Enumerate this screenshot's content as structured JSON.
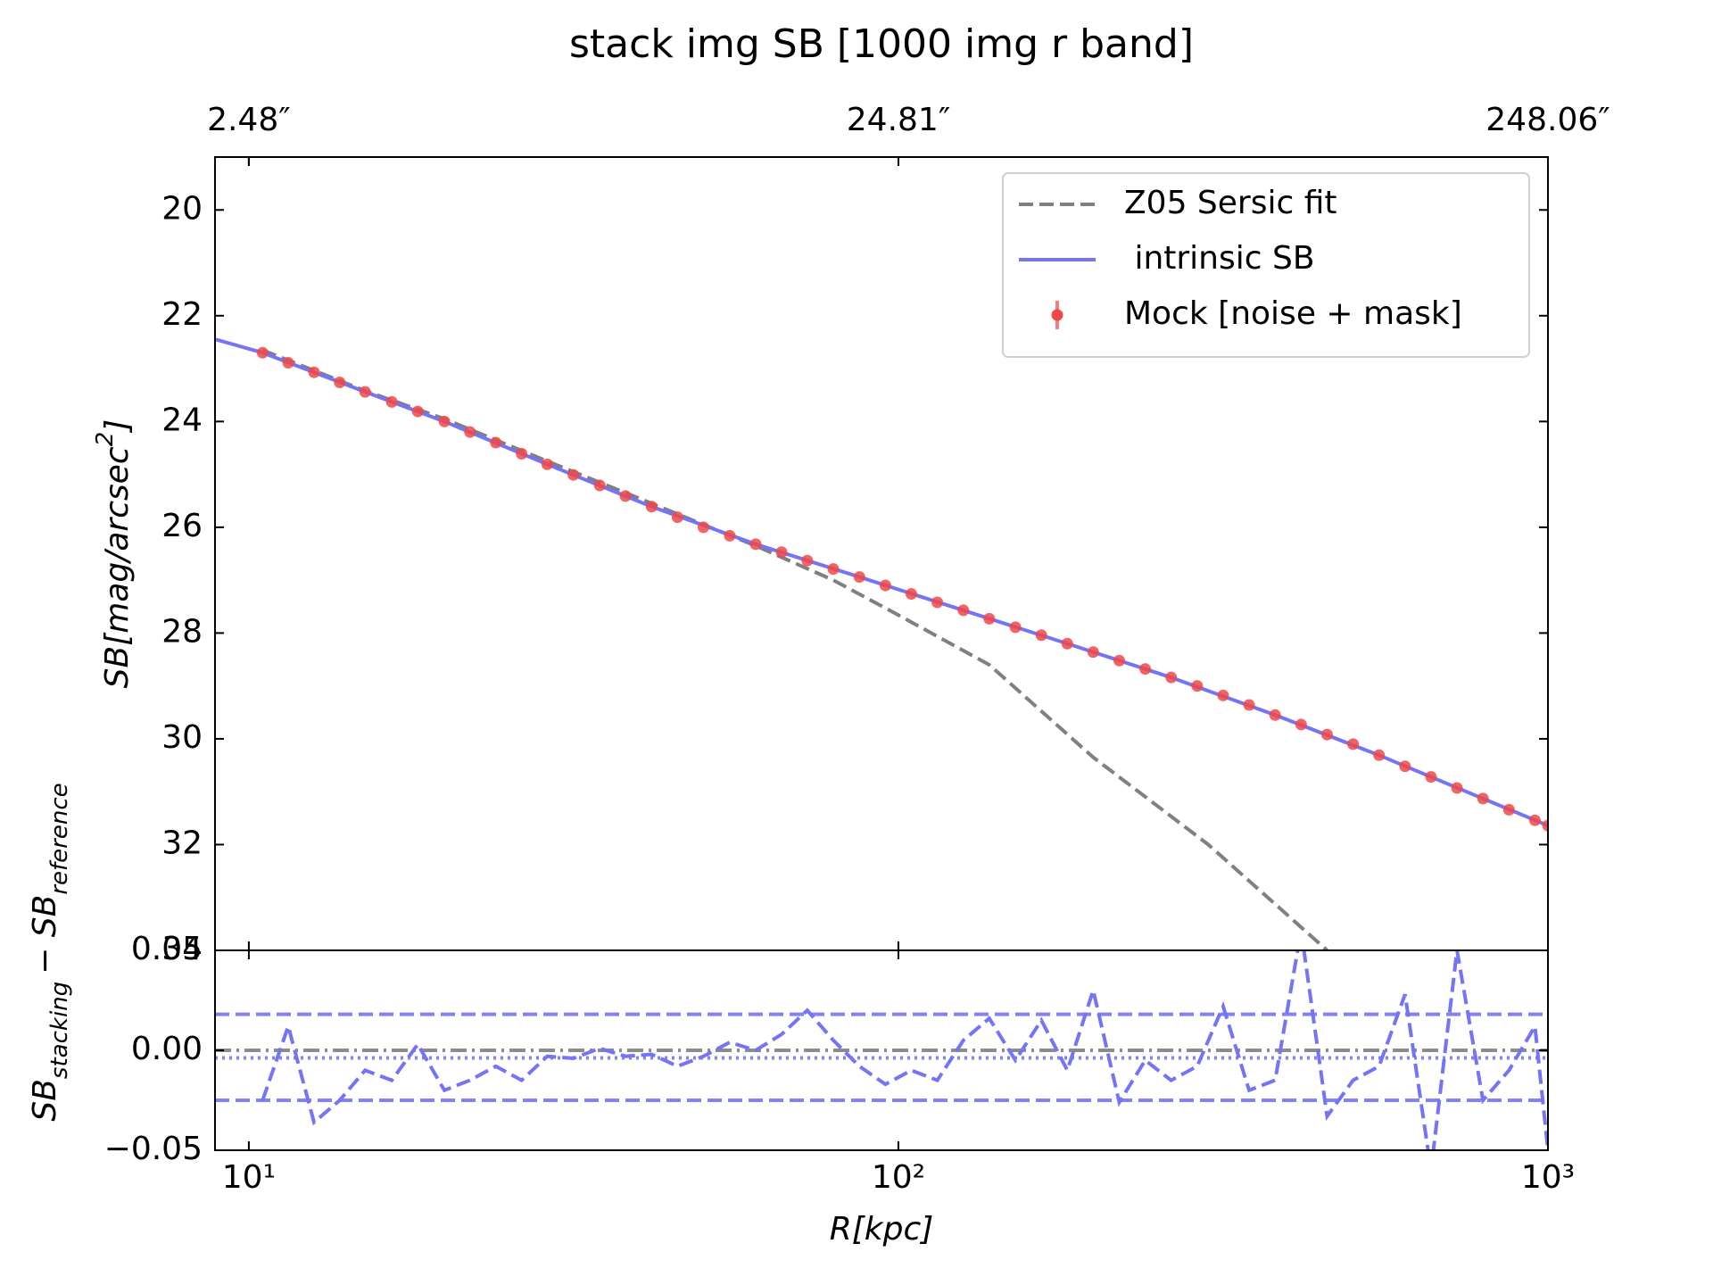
{
  "chart_data": [
    {
      "type": "line",
      "title": "stack img SB [1000 img r band]",
      "ylabel": {
        "main": "SB[mag/arcsec",
        "sup": "2",
        "close": "]"
      },
      "xscale": "log",
      "xlim": [
        8.87,
        1000
      ],
      "x2lim": [
        2.2,
        248.06
      ],
      "x2ticks": [
        {
          "value": 2.48,
          "label": "2.48″"
        },
        {
          "value": 24.81,
          "label": "24.81″"
        },
        {
          "value": 248.06,
          "label": "248.06″"
        }
      ],
      "ylim": [
        19,
        34
      ],
      "yinvert": true,
      "yticks": [
        20,
        22,
        24,
        26,
        28,
        30,
        32,
        34
      ],
      "legend": "upper right",
      "series": [
        {
          "name": "Z05 Sersic fit",
          "color": "#808080",
          "style": "dashed",
          "x": [
            10.5,
            15.1,
            20,
            28.8,
            41.7,
            50.1,
            60.3,
            79.4,
            100,
            138,
            199.5,
            300,
            457.1
          ],
          "values": [
            22.65,
            23.42,
            23.95,
            24.75,
            25.55,
            25.95,
            26.35,
            27.0,
            27.66,
            28.6,
            30.35,
            32.0,
            34.0
          ]
        },
        {
          "name": " intrinsic SB",
          "color": "#7474f8",
          "style": "solid",
          "x": [
            8.9,
            10.5,
            15.1,
            20,
            28.8,
            41.7,
            60.3,
            87.1,
            125.9,
            182,
            263,
            380.2,
            549.5,
            794.3,
            1000
          ],
          "values": [
            22.45,
            22.7,
            23.44,
            24.0,
            24.81,
            25.61,
            26.32,
            26.94,
            27.57,
            28.2,
            28.84,
            29.55,
            30.31,
            31.13,
            31.64
          ]
        },
        {
          "name": "Mock [noise + mask]",
          "color": "#f04848",
          "style": "markers",
          "x": [
            10.5,
            11.5,
            12.6,
            13.8,
            15.1,
            16.6,
            18.2,
            20.0,
            21.9,
            24.0,
            26.3,
            28.8,
            31.6,
            34.7,
            38.0,
            41.7,
            45.7,
            50.1,
            55.0,
            60.3,
            66.1,
            72.4,
            79.4,
            87.1,
            95.5,
            104.7,
            114.8,
            125.9,
            138.0,
            151.4,
            166.0,
            182.0,
            199.5,
            218.8,
            239.9,
            263.0,
            288.4,
            316.2,
            346.7,
            380.2,
            416.9,
            457.1,
            501.2,
            549.5,
            602.6,
            660.7,
            724.4,
            794.3,
            871.0,
            955.0,
            1000
          ],
          "values": [
            22.7,
            22.89,
            23.07,
            23.26,
            23.44,
            23.63,
            23.81,
            24.0,
            24.2,
            24.4,
            24.61,
            24.81,
            25.01,
            25.21,
            25.41,
            25.61,
            25.81,
            26.0,
            26.16,
            26.32,
            26.47,
            26.63,
            26.79,
            26.94,
            27.1,
            27.26,
            27.42,
            27.57,
            27.73,
            27.89,
            28.04,
            28.2,
            28.36,
            28.52,
            28.68,
            28.84,
            29.0,
            29.18,
            29.36,
            29.55,
            29.73,
            29.92,
            30.1,
            30.31,
            30.52,
            30.72,
            30.93,
            31.13,
            31.34,
            31.54,
            31.64
          ]
        }
      ]
    },
    {
      "type": "line",
      "xlabel": "R[kpc]",
      "ylabel": {
        "main": "SB",
        "sub": "stacking",
        "main2": "− SB",
        "sub2": "reference"
      },
      "xscale": "log",
      "xlim": [
        8.87,
        1000
      ],
      "xticks": [
        {
          "value": 10,
          "label": "10¹"
        },
        {
          "value": 100,
          "label": "10²"
        },
        {
          "value": 1000,
          "label": "10³"
        }
      ],
      "ylim": [
        -0.05,
        0.05
      ],
      "yticks": [
        {
          "value": -0.05,
          "label": "−0.05"
        },
        {
          "value": 0,
          "label": "0.00"
        },
        {
          "value": 0.05,
          "label": "0.05"
        }
      ],
      "hlines": [
        {
          "value": 0,
          "color": "#808080",
          "style": "dashdot"
        },
        {
          "value": -0.0038,
          "color": "#7474f8",
          "style": "dotted"
        },
        {
          "value": 0.018,
          "color": "#7474f8",
          "style": "dashed"
        },
        {
          "value": -0.025,
          "color": "#7474f8",
          "style": "dashed"
        }
      ],
      "series": [
        {
          "color": "#7474f8",
          "style": "dashed",
          "x": [
            10.5,
            11.5,
            12.6,
            13.8,
            15.1,
            16.6,
            18.2,
            20.0,
            21.9,
            24.0,
            26.3,
            28.8,
            31.6,
            34.7,
            38.0,
            41.7,
            45.7,
            50.1,
            55.0,
            60.3,
            66.1,
            72.4,
            79.4,
            87.1,
            95.5,
            104.7,
            114.8,
            125.9,
            138.0,
            151.4,
            166.0,
            182.0,
            199.5,
            218.8,
            239.9,
            263.0,
            288.4,
            316.2,
            346.7,
            380.2,
            416.9,
            457.1,
            501.2,
            549.5,
            602.6,
            660.7,
            724.4,
            794.3,
            871.0,
            955.0,
            1000
          ],
          "values": [
            -0.025,
            0.012,
            -0.036,
            -0.025,
            -0.01,
            -0.015,
            0.003,
            -0.02,
            -0.015,
            -0.008,
            -0.015,
            -0.003,
            -0.004,
            0.001,
            -0.003,
            -0.002,
            -0.008,
            -0.003,
            0.004,
            0.0,
            0.008,
            0.02,
            0.005,
            -0.008,
            -0.017,
            -0.01,
            -0.015,
            0.005,
            0.016,
            -0.005,
            0.015,
            -0.01,
            0.03,
            -0.026,
            -0.005,
            -0.015,
            -0.008,
            0.022,
            -0.02,
            -0.015,
            0.06,
            -0.033,
            -0.015,
            -0.008,
            0.028,
            -0.06,
            0.05,
            -0.025,
            -0.01,
            0.012,
            -0.05
          ]
        }
      ]
    }
  ]
}
